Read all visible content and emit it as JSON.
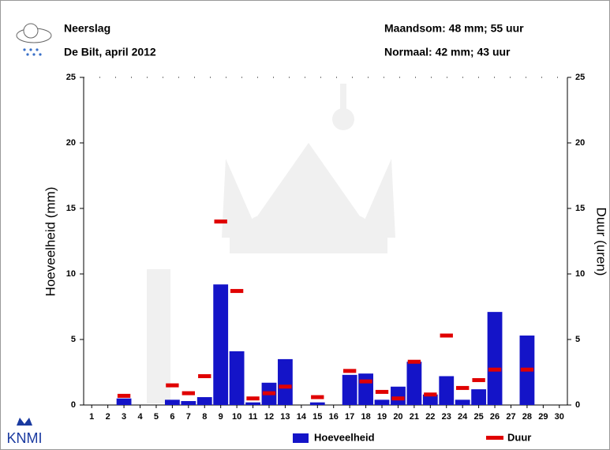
{
  "chart_data": {
    "type": "bar",
    "title": "Neerslag",
    "subtitle": "De Bilt, april 2012",
    "annotations": [
      "Maandsom: 48 mm; 55 uur",
      "Normaal: 42 mm; 43 uur"
    ],
    "logo": "KNMI",
    "ylabel": "Hoeveelheid (mm)",
    "y2label": "Duur (uren)",
    "categories": [
      "1",
      "2",
      "3",
      "4",
      "5",
      "6",
      "7",
      "8",
      "9",
      "10",
      "11",
      "12",
      "13",
      "14",
      "15",
      "16",
      "17",
      "18",
      "19",
      "20",
      "21",
      "22",
      "23",
      "24",
      "25",
      "26",
      "27",
      "28",
      "29",
      "30"
    ],
    "series": [
      {
        "name": "Hoeveelheid",
        "color": "#1414c8",
        "marker": "bar",
        "values": [
          0,
          0,
          0.5,
          0,
          0,
          0.4,
          0.3,
          0.6,
          9.2,
          4.1,
          0.2,
          1.7,
          3.5,
          0,
          0.2,
          0,
          2.3,
          2.4,
          0.4,
          1.4,
          3.3,
          0.8,
          2.2,
          0.4,
          1.2,
          7.1,
          0,
          5.3,
          0,
          0
        ]
      },
      {
        "name": "Duur",
        "color": "#e00000",
        "marker": "dash",
        "axis": "y2",
        "values": [
          null,
          null,
          0.7,
          null,
          null,
          1.5,
          0.9,
          2.2,
          14.0,
          8.7,
          0.5,
          0.9,
          1.4,
          null,
          0.6,
          null,
          2.6,
          1.8,
          1.0,
          0.5,
          3.3,
          0.8,
          5.3,
          1.3,
          1.9,
          2.7,
          null,
          2.7,
          null,
          null
        ]
      }
    ],
    "ylim": [
      0,
      25
    ],
    "yticks": [
      0,
      5,
      10,
      15,
      20,
      25
    ],
    "y2lim": [
      0,
      25
    ],
    "y2ticks": [
      0,
      5,
      10,
      15,
      20,
      25
    ],
    "legend": "bottom"
  }
}
